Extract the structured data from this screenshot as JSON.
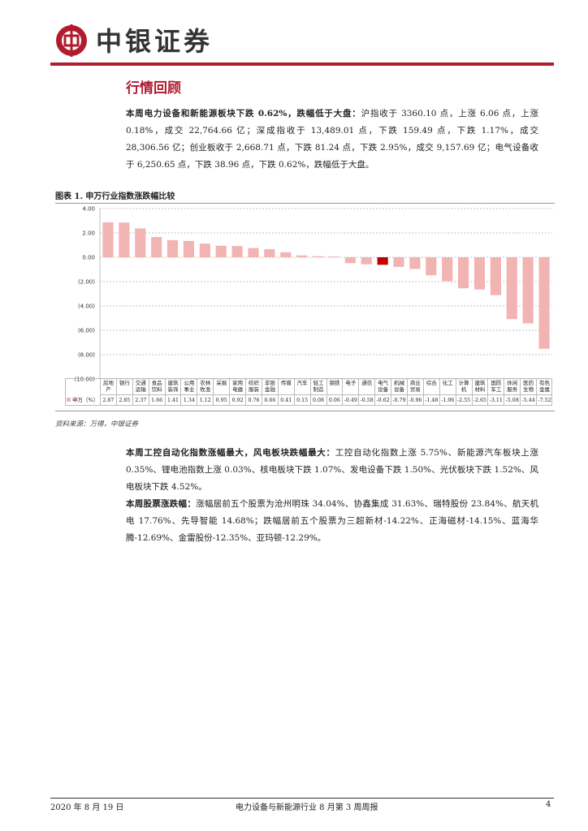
{
  "header": {
    "logo_text": "中银证券"
  },
  "section_title": "行情回顾",
  "paragraphs": [
    {
      "lead": "本周电力设备和新能源板块下跌 0.62%，跌幅低于大盘：",
      "text": "沪指收于 3360.10 点，上涨 6.06 点，上涨 0.18%，成交 22,764.66 亿；深成指收于 13,489.01 点，下跌 159.49 点，下跌 1.17%，成交 28,306.56 亿；创业板收于 2,668.71 点，下跌 81.24 点，下跌 2.95%，成交 9,157.69 亿；电气设备收于 6,250.65 点，下跌 38.96 点，下跌 0.62%，跌幅低于大盘。"
    }
  ],
  "chart_data": {
    "type": "bar",
    "title": "图表 1. 申万行业指数涨跌幅比较",
    "categories": [
      "房地产",
      "银行",
      "交通运输",
      "食品饮料",
      "建筑装饰",
      "公用事业",
      "农林牧渔",
      "采掘",
      "家用电器",
      "纺织服装",
      "非银金融",
      "传媒",
      "汽车",
      "轻工制造",
      "钢铁",
      "电子",
      "通信",
      "电气设备",
      "机械设备",
      "商业贸易",
      "综合",
      "化工",
      "计算机",
      "建筑材料",
      "国防军工",
      "休闲服务",
      "医药生物",
      "有色金属"
    ],
    "series": [
      {
        "name": "申万（%）",
        "color": "#f2b3b3",
        "values": [
          2.87,
          2.85,
          2.37,
          1.66,
          1.41,
          1.34,
          1.12,
          0.95,
          0.92,
          0.76,
          0.66,
          0.41,
          0.15,
          0.08,
          0.06,
          -0.49,
          -0.58,
          -0.62,
          -0.79,
          -0.96,
          -1.48,
          -1.96,
          -2.55,
          -2.65,
          -3.11,
          -5.08,
          -5.44,
          -7.52
        ],
        "colors": [
          "#f2b3b3",
          "#f2b3b3",
          "#f2b3b3",
          "#f2b3b3",
          "#f2b3b3",
          "#f2b3b3",
          "#f2b3b3",
          "#f2b3b3",
          "#f2b3b3",
          "#f2b3b3",
          "#f2b3b3",
          "#f2b3b3",
          "#f2b3b3",
          "#f2b3b3",
          "#f2b3b3",
          "#f2b3b3",
          "#f2b3b3",
          "#c00000",
          "#f2b3b3",
          "#f2b3b3",
          "#f2b3b3",
          "#f2b3b3",
          "#f2b3b3",
          "#f2b3b3",
          "#f2b3b3",
          "#f2b3b3",
          "#f2b3b3",
          "#f2b3b3"
        ]
      }
    ],
    "ylim": [
      -10,
      4
    ],
    "yticks": [
      {
        "value": 4,
        "label": "4.00"
      },
      {
        "value": 2,
        "label": "2.00"
      },
      {
        "value": 0,
        "label": "0.00"
      },
      {
        "value": -2,
        "label": "(2.00)"
      },
      {
        "value": -4,
        "label": "(4.00)"
      },
      {
        "value": -6,
        "label": "(6.00)"
      },
      {
        "value": -8,
        "label": "(8.00)"
      },
      {
        "value": -10,
        "label": "(10.00)"
      }
    ],
    "grid": true,
    "source": "资料来源：万得，中银证券"
  },
  "paragraphs_after": [
    {
      "lead": "本周工控自动化指数涨幅最大，风电板块跌幅最大：",
      "text": "工控自动化指数上涨 5.75%、新能源汽车板块上涨 0.35%、锂电池指数上涨 0.03%、核电板块下跌 1.07%、发电设备下跌 1.50%、光伏板块下跌 1.52%、风电板块下跌 4.52%。"
    },
    {
      "lead": "本周股票涨跌幅：",
      "text": "涨幅居前五个股票为沧州明珠 34.04%、协鑫集成 31.63%、瑞特股份 23.84%、航天机电 17.76%、先导智能 14.68%；跌幅居前五个股票为三超新材-14.22%、正海磁材-14.15%、蓝海华腾-12.69%、金雷股份-12.35%、亚玛顿-12.29%。"
    }
  ],
  "footer": {
    "date": "2020 年 8 月 19 日",
    "report": "电力设备与新能源行业 8 月第 3 周周报",
    "page": "4"
  }
}
